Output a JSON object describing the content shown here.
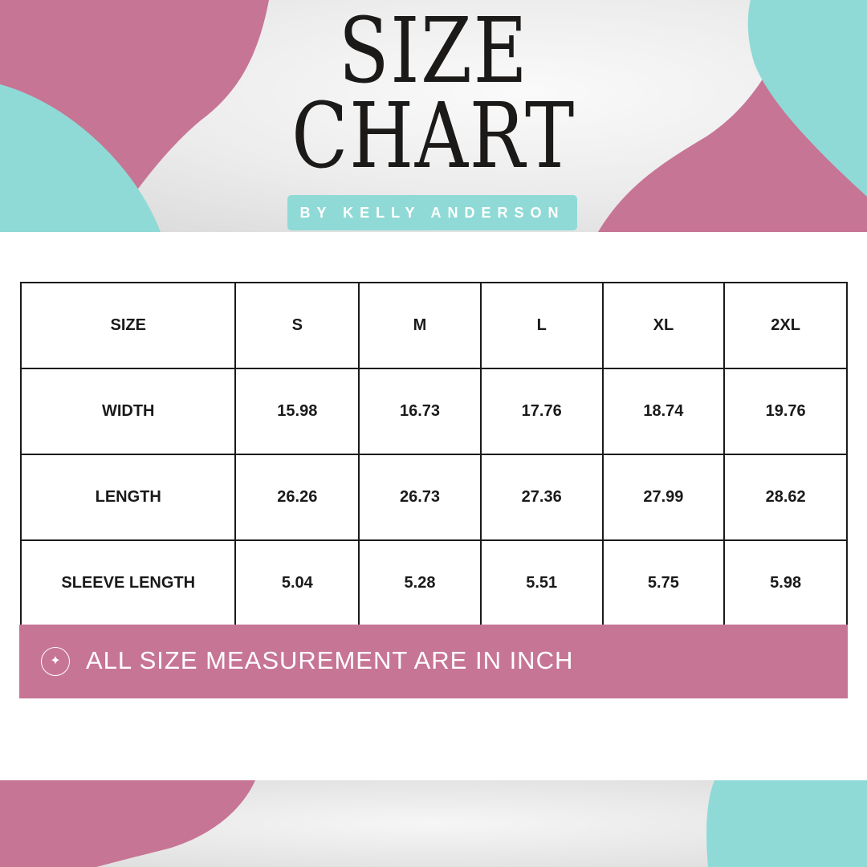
{
  "header": {
    "title_line1": "SIZE",
    "title_line2": "CHART",
    "byline": "BY KELLY ANDERSON"
  },
  "colors": {
    "pink": "#c77594",
    "teal": "#8fdad6",
    "text": "#1a1a1a"
  },
  "table": {
    "header": [
      "SIZE",
      "S",
      "M",
      "L",
      "XL",
      "2XL"
    ],
    "rows": [
      [
        "WIDTH",
        "15.98",
        "16.73",
        "17.76",
        "18.74",
        "19.76"
      ],
      [
        "LENGTH",
        "26.26",
        "26.73",
        "27.36",
        "27.99",
        "28.62"
      ],
      [
        "SLEEVE LENGTH",
        "5.04",
        "5.28",
        "5.51",
        "5.75",
        "5.98"
      ]
    ]
  },
  "note": {
    "icon": "sparkle-icon",
    "text": "ALL SIZE MEASUREMENT ARE IN INCH"
  }
}
